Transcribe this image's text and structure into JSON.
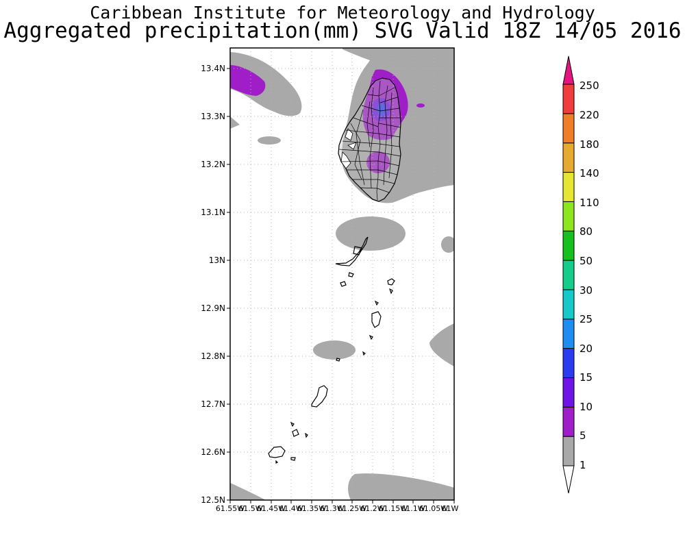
{
  "header": {
    "title": "Caribbean Institute for Meteorology and Hydrology",
    "subtitle": "Aggregated precipitation(mm) SVG Valid 18Z 14/05 2016"
  },
  "map": {
    "lat_labels": [
      "13.4N",
      "13.3N",
      "13.2N",
      "13.1N",
      "13N",
      "12.9N",
      "12.8N",
      "12.7N",
      "12.6N",
      "12.5N"
    ],
    "lon_labels": [
      "61.55W",
      "61.5W",
      "61.45W",
      "61.4W",
      "61.35W",
      "61.3W",
      "61.25W",
      "61.2W",
      "61.15W",
      "61.1W",
      "61.05W",
      "61W"
    ],
    "lat_range": [
      12.5,
      13.44
    ],
    "lon_range": [
      -61.55,
      -61.0
    ],
    "land_color": "#ffffff",
    "outline_color": "#000000",
    "grid": true,
    "grid_style": "dotted"
  },
  "legend": {
    "levels": [
      "1",
      "5",
      "10",
      "15",
      "20",
      "25",
      "30",
      "50",
      "80",
      "110",
      "140",
      "180",
      "220",
      "250"
    ],
    "colors": [
      "#a9a9a9",
      "#a01ec8",
      "#6e14e6",
      "#2b3cf0",
      "#1e8cf0",
      "#16c8c8",
      "#16cc8a",
      "#16c01e",
      "#8ce61e",
      "#e6e632",
      "#e6aa32",
      "#f07e28",
      "#f03c3c",
      "#e6147e"
    ],
    "placement": "right"
  }
}
